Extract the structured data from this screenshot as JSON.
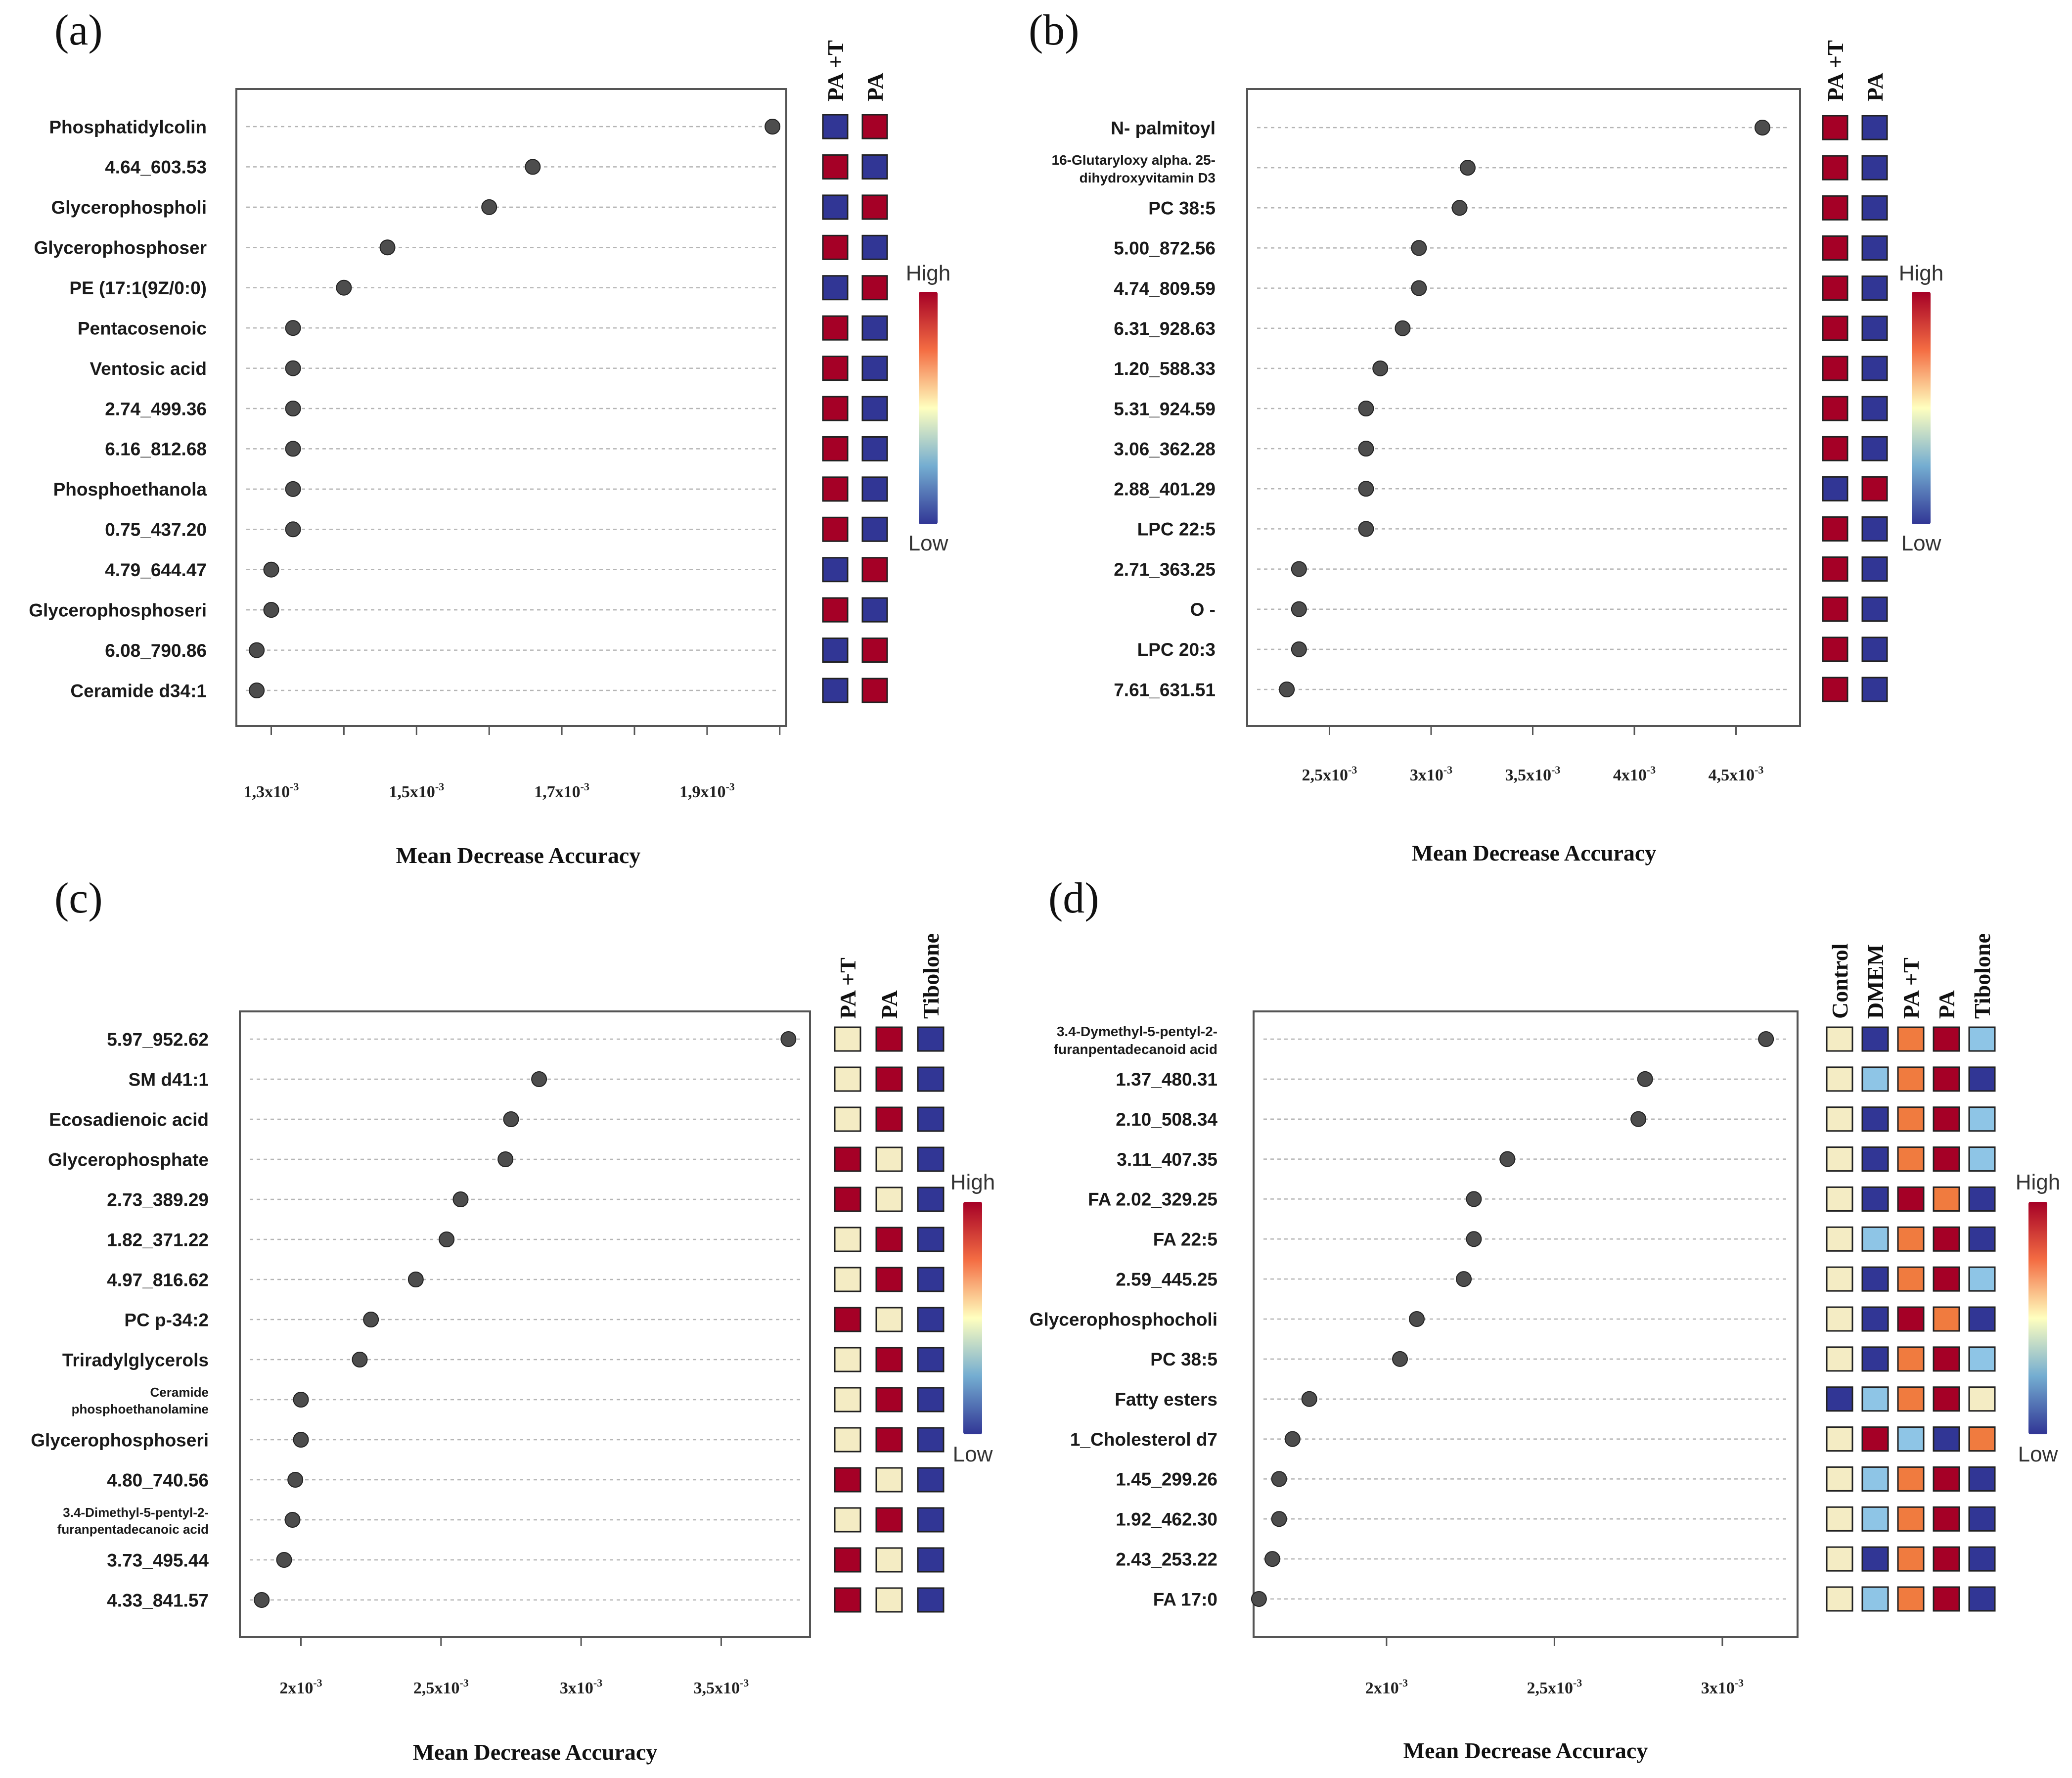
{
  "figure": {
    "background": "#ffffff",
    "heat_colors": {
      "High": "#a50026",
      "Upper": "#f07b3f",
      "Mid": "#f4ecc4",
      "Light": "#8ec5e6",
      "Low": "#313695"
    }
  },
  "chart_data": [
    {
      "type": "dot_plot_heatmap",
      "panel_label": "(a)",
      "title": "",
      "xlabel": "Mean Decrease Accuracy",
      "xlim": [
        0.001252,
        0.002009
      ],
      "xticks": [
        {
          "v": 0.0013,
          "base": "1,3x10",
          "exp": "-3"
        },
        {
          "v": 0.0015,
          "base": "1,5x10",
          "exp": "-3"
        },
        {
          "v": 0.0017,
          "base": "1,7x10",
          "exp": "-3"
        },
        {
          "v": 0.0019,
          "base": "1,9x10",
          "exp": "-3"
        }
      ],
      "minor_ticks": [
        0.0013,
        0.0014,
        0.0015,
        0.0016,
        0.0017,
        0.0018,
        0.0019,
        0.002
      ],
      "heat_columns": [
        "PA +T",
        "PA"
      ],
      "legend": {
        "high": "High",
        "low": "Low"
      },
      "features": [
        {
          "label": [
            "Phosphatidylcolin"
          ],
          "value": 0.00199,
          "heat": [
            "Low",
            "High"
          ]
        },
        {
          "label": [
            "4.64_603.53"
          ],
          "value": 0.00166,
          "heat": [
            "High",
            "Low"
          ]
        },
        {
          "label": [
            "Glycerophospholi"
          ],
          "value": 0.0016,
          "heat": [
            "Low",
            "High"
          ]
        },
        {
          "label": [
            "Glycerophosphoser"
          ],
          "value": 0.00146,
          "heat": [
            "High",
            "Low"
          ]
        },
        {
          "label": [
            "PE (17:1(9Z/0:0)"
          ],
          "value": 0.0014,
          "heat": [
            "Low",
            "High"
          ]
        },
        {
          "label": [
            "Pentacosenoic"
          ],
          "value": 0.00133,
          "heat": [
            "High",
            "Low"
          ]
        },
        {
          "label": [
            "Ventosic acid"
          ],
          "value": 0.00133,
          "heat": [
            "High",
            "Low"
          ]
        },
        {
          "label": [
            "2.74_499.36"
          ],
          "value": 0.00133,
          "heat": [
            "High",
            "Low"
          ]
        },
        {
          "label": [
            "6.16_812.68"
          ],
          "value": 0.00133,
          "heat": [
            "High",
            "Low"
          ]
        },
        {
          "label": [
            "Phosphoethanola"
          ],
          "value": 0.00133,
          "heat": [
            "High",
            "Low"
          ]
        },
        {
          "label": [
            "0.75_437.20"
          ],
          "value": 0.00133,
          "heat": [
            "High",
            "Low"
          ]
        },
        {
          "label": [
            "4.79_644.47"
          ],
          "value": 0.0013,
          "heat": [
            "Low",
            "High"
          ]
        },
        {
          "label": [
            "Glycerophosphoseri"
          ],
          "value": 0.0013,
          "heat": [
            "High",
            "Low"
          ]
        },
        {
          "label": [
            "6.08_790.86"
          ],
          "value": 0.00128,
          "heat": [
            "Low",
            "High"
          ]
        },
        {
          "label": [
            "Ceramide d34:1"
          ],
          "value": 0.00128,
          "heat": [
            "Low",
            "High"
          ]
        }
      ]
    },
    {
      "type": "dot_plot_heatmap",
      "panel_label": "(b)",
      "title": "",
      "xlabel": "Mean Decrease Accuracy",
      "xlim": [
        0.002095,
        0.004815
      ],
      "xticks": [
        {
          "v": 0.0025,
          "base": "2,5x10",
          "exp": "-3"
        },
        {
          "v": 0.003,
          "base": "3x10",
          "exp": "-3"
        },
        {
          "v": 0.0035,
          "base": "3,5x10",
          "exp": "-3"
        },
        {
          "v": 0.004,
          "base": "4x10",
          "exp": "-3"
        },
        {
          "v": 0.0045,
          "base": "4,5x10",
          "exp": "-3"
        }
      ],
      "minor_ticks": [
        0.0025,
        0.003,
        0.0035,
        0.004,
        0.0045
      ],
      "heat_columns": [
        "PA +T",
        "PA"
      ],
      "legend": {
        "high": "High",
        "low": "Low"
      },
      "features": [
        {
          "label": [
            "N- palmitoyl"
          ],
          "value": 0.00463,
          "heat": [
            "High",
            "Low"
          ]
        },
        {
          "label": [
            "16-Glutaryloxy alpha. 25-",
            "dihydroxyvitamin D3"
          ],
          "value": 0.00318,
          "heat": [
            "High",
            "Low"
          ]
        },
        {
          "label": [
            "PC 38:5"
          ],
          "value": 0.00314,
          "heat": [
            "High",
            "Low"
          ]
        },
        {
          "label": [
            "5.00_872.56"
          ],
          "value": 0.00294,
          "heat": [
            "High",
            "Low"
          ]
        },
        {
          "label": [
            "4.74_809.59"
          ],
          "value": 0.00294,
          "heat": [
            "High",
            "Low"
          ]
        },
        {
          "label": [
            "6.31_928.63"
          ],
          "value": 0.00286,
          "heat": [
            "High",
            "Low"
          ]
        },
        {
          "label": [
            "1.20_588.33"
          ],
          "value": 0.00275,
          "heat": [
            "High",
            "Low"
          ]
        },
        {
          "label": [
            "5.31_924.59"
          ],
          "value": 0.00268,
          "heat": [
            "High",
            "Low"
          ]
        },
        {
          "label": [
            "3.06_362.28"
          ],
          "value": 0.00268,
          "heat": [
            "High",
            "Low"
          ]
        },
        {
          "label": [
            "2.88_401.29"
          ],
          "value": 0.00268,
          "heat": [
            "Low",
            "High"
          ]
        },
        {
          "label": [
            "LPC 22:5"
          ],
          "value": 0.00268,
          "heat": [
            "High",
            "Low"
          ]
        },
        {
          "label": [
            "2.71_363.25"
          ],
          "value": 0.00235,
          "heat": [
            "High",
            "Low"
          ]
        },
        {
          "label": [
            "O -"
          ],
          "value": 0.00235,
          "heat": [
            "High",
            "Low"
          ]
        },
        {
          "label": [
            "LPC 20:3"
          ],
          "value": 0.00235,
          "heat": [
            "High",
            "Low"
          ]
        },
        {
          "label": [
            "7.61_631.51"
          ],
          "value": 0.00229,
          "heat": [
            "High",
            "Low"
          ]
        }
      ]
    },
    {
      "type": "dot_plot_heatmap",
      "panel_label": "(c)",
      "title": "",
      "xlabel": "Mean Decrease Accuracy",
      "xlim": [
        0.001782,
        0.003817
      ],
      "xticks": [
        {
          "v": 0.002,
          "base": "2x10",
          "exp": "-3"
        },
        {
          "v": 0.0025,
          "base": "2,5x10",
          "exp": "-3"
        },
        {
          "v": 0.003,
          "base": "3x10",
          "exp": "-3"
        },
        {
          "v": 0.0035,
          "base": "3,5x10",
          "exp": "-3"
        }
      ],
      "minor_ticks": [
        0.002,
        0.0025,
        0.003,
        0.0035
      ],
      "heat_columns": [
        "PA +T",
        "PA",
        "Tibolone"
      ],
      "legend": {
        "high": "High",
        "low": "Low"
      },
      "features": [
        {
          "label": [
            "5.97_952.62"
          ],
          "value": 0.00374,
          "heat": [
            "Mid",
            "High",
            "Low"
          ]
        },
        {
          "label": [
            "SM d41:1"
          ],
          "value": 0.00285,
          "heat": [
            "Mid",
            "High",
            "Low"
          ]
        },
        {
          "label": [
            "Ecosadienoic acid"
          ],
          "value": 0.00275,
          "heat": [
            "Mid",
            "High",
            "Low"
          ]
        },
        {
          "label": [
            "Glycerophosphate"
          ],
          "value": 0.00273,
          "heat": [
            "High",
            "Mid",
            "Low"
          ]
        },
        {
          "label": [
            "2.73_389.29"
          ],
          "value": 0.00257,
          "heat": [
            "High",
            "Mid",
            "Low"
          ]
        },
        {
          "label": [
            "1.82_371.22"
          ],
          "value": 0.00252,
          "heat": [
            "Mid",
            "High",
            "Low"
          ]
        },
        {
          "label": [
            "4.97_816.62"
          ],
          "value": 0.00241,
          "heat": [
            "Mid",
            "High",
            "Low"
          ]
        },
        {
          "label": [
            "PC p-34:2"
          ],
          "value": 0.00225,
          "heat": [
            "High",
            "Mid",
            "Low"
          ]
        },
        {
          "label": [
            "Triradylglycerols"
          ],
          "value": 0.00221,
          "heat": [
            "Mid",
            "High",
            "Low"
          ]
        },
        {
          "label": [
            "Ceramide",
            "phosphoethanolamine"
          ],
          "value": 0.002,
          "heat": [
            "Mid",
            "High",
            "Low"
          ]
        },
        {
          "label": [
            "Glycerophosphoseri"
          ],
          "value": 0.002,
          "heat": [
            "Mid",
            "High",
            "Low"
          ]
        },
        {
          "label": [
            "4.80_740.56"
          ],
          "value": 0.00198,
          "heat": [
            "High",
            "Mid",
            "Low"
          ]
        },
        {
          "label": [
            "3.4-Dimethyl-5-pentyl-2-",
            "furanpentadecanoic acid"
          ],
          "value": 0.00197,
          "heat": [
            "Mid",
            "High",
            "Low"
          ]
        },
        {
          "label": [
            "3.73_495.44"
          ],
          "value": 0.00194,
          "heat": [
            "High",
            "Mid",
            "Low"
          ]
        },
        {
          "label": [
            "4.33_841.57"
          ],
          "value": 0.00186,
          "heat": [
            "High",
            "Mid",
            "Low"
          ]
        }
      ]
    },
    {
      "type": "dot_plot_heatmap",
      "panel_label": "(d)",
      "title": "",
      "xlabel": "Mean Decrease Accuracy",
      "xlim": [
        0.001604,
        0.003224
      ],
      "xticks": [
        {
          "v": 0.002,
          "base": "2x10",
          "exp": "-3"
        },
        {
          "v": 0.0025,
          "base": "2,5x10",
          "exp": "-3"
        },
        {
          "v": 0.003,
          "base": "3x10",
          "exp": "-3"
        }
      ],
      "minor_ticks": [
        0.002,
        0.0025,
        0.003
      ],
      "heat_columns": [
        "Control",
        "DMEM",
        "PA +T",
        "PA",
        "Tibolone"
      ],
      "legend": {
        "high": "High",
        "low": "Low"
      },
      "features": [
        {
          "label": [
            "3.4-Dymethyl-5-pentyl-2-",
            "furanpentadecanoid acid"
          ],
          "value": 0.00313,
          "heat": [
            "Mid",
            "Low",
            "Upper",
            "High",
            "Light"
          ]
        },
        {
          "label": [
            "1.37_480.31"
          ],
          "value": 0.00277,
          "heat": [
            "Mid",
            "Light",
            "Upper",
            "High",
            "Low"
          ]
        },
        {
          "label": [
            "2.10_508.34"
          ],
          "value": 0.00275,
          "heat": [
            "Mid",
            "Low",
            "Upper",
            "High",
            "Light"
          ]
        },
        {
          "label": [
            "3.11_407.35"
          ],
          "value": 0.00236,
          "heat": [
            "Mid",
            "Low",
            "Upper",
            "High",
            "Light"
          ]
        },
        {
          "label": [
            "FA 2.02_329.25"
          ],
          "value": 0.00226,
          "heat": [
            "Mid",
            "Low",
            "High",
            "Upper",
            "Low"
          ]
        },
        {
          "label": [
            "FA 22:5"
          ],
          "value": 0.00226,
          "heat": [
            "Mid",
            "Light",
            "Upper",
            "High",
            "Low"
          ]
        },
        {
          "label": [
            "2.59_445.25"
          ],
          "value": 0.00223,
          "heat": [
            "Mid",
            "Low",
            "Upper",
            "High",
            "Light"
          ]
        },
        {
          "label": [
            "Glycerophosphocholi"
          ],
          "value": 0.00209,
          "heat": [
            "Mid",
            "Low",
            "High",
            "Upper",
            "Low"
          ]
        },
        {
          "label": [
            "PC 38:5"
          ],
          "value": 0.00204,
          "heat": [
            "Mid",
            "Low",
            "Upper",
            "High",
            "Light"
          ]
        },
        {
          "label": [
            "Fatty esters"
          ],
          "value": 0.00177,
          "heat": [
            "Low",
            "Light",
            "Upper",
            "High",
            "Mid"
          ]
        },
        {
          "label": [
            "1_Cholesterol d7"
          ],
          "value": 0.00172,
          "heat": [
            "Mid",
            "High",
            "Light",
            "Low",
            "Upper"
          ]
        },
        {
          "label": [
            "1.45_299.26"
          ],
          "value": 0.00168,
          "heat": [
            "Mid",
            "Light",
            "Upper",
            "High",
            "Low"
          ]
        },
        {
          "label": [
            "1.92_462.30"
          ],
          "value": 0.00168,
          "heat": [
            "Mid",
            "Light",
            "Upper",
            "High",
            "Low"
          ]
        },
        {
          "label": [
            "2.43_253.22"
          ],
          "value": 0.00166,
          "heat": [
            "Mid",
            "Low",
            "Upper",
            "High",
            "Low"
          ]
        },
        {
          "label": [
            "FA 17:0"
          ],
          "value": 0.00162,
          "heat": [
            "Mid",
            "Light",
            "Upper",
            "High",
            "Low"
          ]
        }
      ]
    }
  ]
}
